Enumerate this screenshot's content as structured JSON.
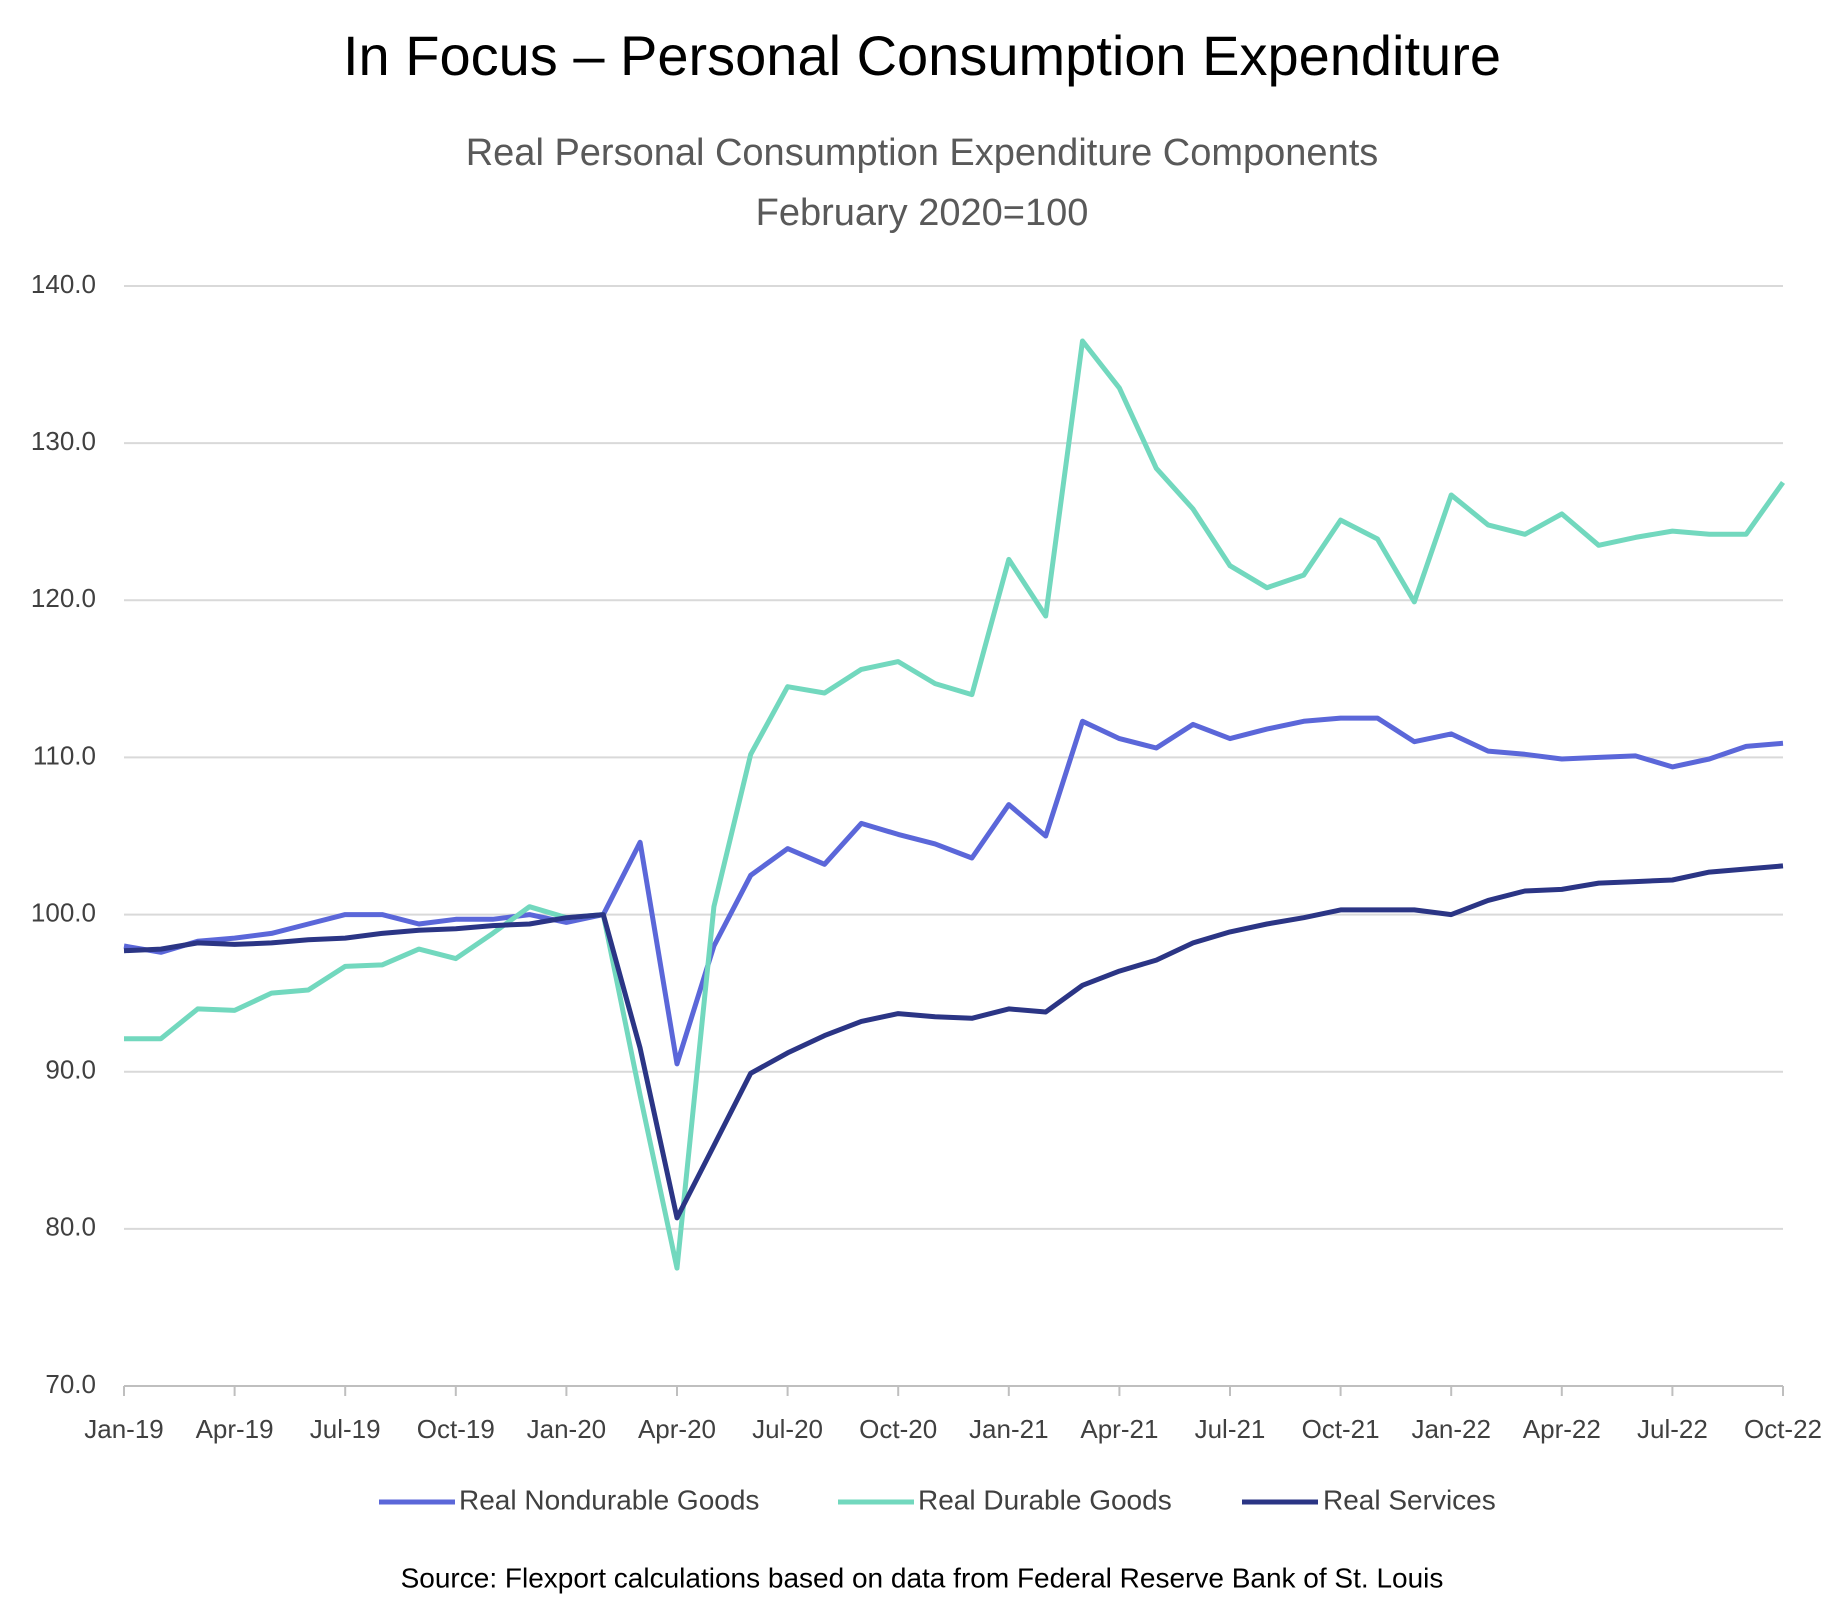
{
  "chart_data": {
    "type": "line",
    "title": "In Focus – Personal Consumption Expenditure",
    "subtitle": [
      "Real Personal Consumption Expenditure Components",
      "February 2020=100"
    ],
    "source": "Source: Flexport calculations based on data from Federal Reserve Bank of St. Louis",
    "categories": [
      "Jan-19",
      null,
      null,
      "Apr-19",
      null,
      null,
      "Jul-19",
      null,
      null,
      "Oct-19",
      null,
      null,
      "Jan-20",
      null,
      null,
      "Apr-20",
      null,
      null,
      "Jul-20",
      null,
      null,
      "Oct-20",
      null,
      null,
      "Jan-21",
      null,
      null,
      "Apr-21",
      null,
      null,
      "Jul-21",
      null,
      null,
      "Oct-21",
      null,
      null,
      "Jan-22",
      null,
      null,
      "Apr-22",
      null,
      null,
      "Jul-22",
      null,
      null,
      "Oct-22"
    ],
    "series": [
      {
        "name": "Real Nondurable Goods",
        "color": "#5b67d9",
        "values": [
          98.0,
          97.6,
          98.3,
          98.5,
          98.8,
          99.4,
          100.0,
          100.0,
          99.4,
          99.7,
          99.7,
          100.0,
          99.5,
          100.0,
          104.6,
          90.5,
          98.0,
          102.5,
          104.2,
          103.2,
          105.8,
          105.1,
          104.5,
          103.6,
          107.0,
          105.0,
          112.3,
          111.2,
          110.6,
          112.1,
          111.2,
          111.8,
          112.3,
          112.5,
          112.5,
          111.0,
          111.5,
          110.4,
          110.2,
          109.9,
          110.0,
          110.1,
          109.4,
          109.9,
          110.7,
          110.9
        ]
      },
      {
        "name": "Real Durable Goods",
        "color": "#72d8be",
        "values": [
          92.1,
          92.1,
          94.0,
          93.9,
          95.0,
          95.2,
          96.7,
          96.8,
          97.8,
          97.2,
          98.8,
          100.5,
          99.8,
          100.0,
          88.5,
          77.5,
          100.5,
          110.2,
          114.5,
          114.1,
          115.6,
          116.1,
          114.7,
          114.0,
          122.6,
          119.0,
          136.5,
          133.5,
          128.4,
          125.8,
          122.2,
          120.8,
          121.6,
          125.1,
          123.9,
          119.9,
          126.7,
          124.8,
          124.2,
          125.5,
          123.5,
          124.0,
          124.4,
          124.2,
          124.2,
          127.5
        ]
      },
      {
        "name": "Real Services",
        "color": "#2b3585",
        "values": [
          97.7,
          97.8,
          98.2,
          98.1,
          98.2,
          98.4,
          98.5,
          98.8,
          99.0,
          99.1,
          99.3,
          99.4,
          99.8,
          100.0,
          91.5,
          80.7,
          85.3,
          89.9,
          91.2,
          92.3,
          93.2,
          93.7,
          93.5,
          93.4,
          94.0,
          93.8,
          95.5,
          96.4,
          97.1,
          98.2,
          98.9,
          99.4,
          99.8,
          100.3,
          100.3,
          100.3,
          100.0,
          100.9,
          101.5,
          101.6,
          102.0,
          102.1,
          102.2,
          102.7,
          102.9,
          103.1
        ]
      }
    ],
    "ylim": [
      70,
      140
    ],
    "yticks": [
      {
        "value": 70,
        "label": "70.0"
      },
      {
        "value": 80,
        "label": "80.0"
      },
      {
        "value": 90,
        "label": "90.0"
      },
      {
        "value": 100,
        "label": "100.0"
      },
      {
        "value": 110,
        "label": "110.0"
      },
      {
        "value": 120,
        "label": "120.0"
      },
      {
        "value": 130,
        "label": "130.0"
      },
      {
        "value": 140,
        "label": "140.0"
      }
    ],
    "grid": true,
    "legend": "bottom"
  }
}
